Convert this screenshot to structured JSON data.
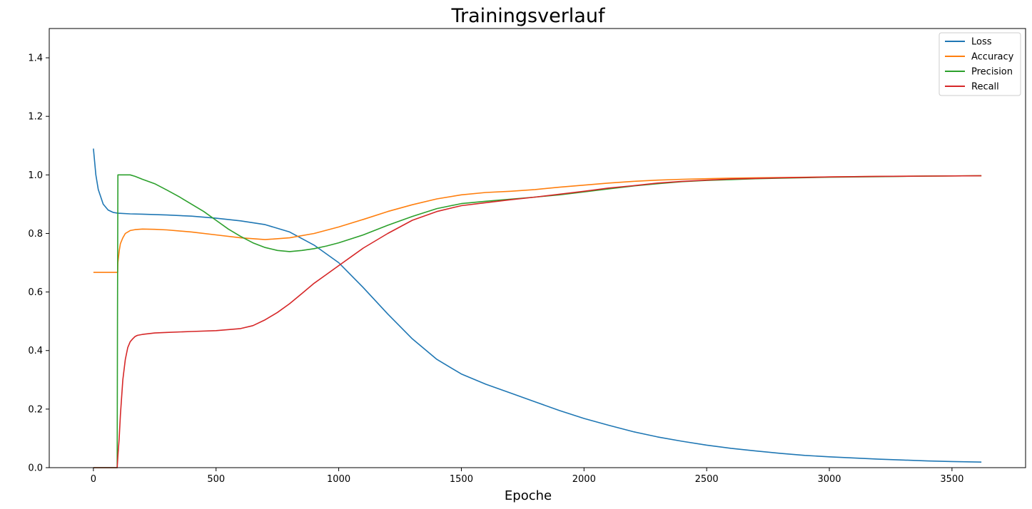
{
  "chart_data": {
    "type": "line",
    "title": "Trainingsverlauf",
    "xlabel": "Epoche",
    "ylabel": "",
    "xlim": [
      -180,
      3800
    ],
    "ylim": [
      0,
      1.5
    ],
    "xticks": [
      0,
      500,
      1000,
      1500,
      2000,
      2500,
      3000,
      3500
    ],
    "yticks": [
      0.0,
      0.2,
      0.4,
      0.6,
      0.8,
      1.0,
      1.2,
      1.4
    ],
    "grid": false,
    "legend": "top-right",
    "series": [
      {
        "name": "Loss",
        "color": "#1f77b4",
        "x": [
          0,
          10,
          20,
          40,
          60,
          80,
          100,
          150,
          200,
          300,
          400,
          500,
          600,
          700,
          800,
          900,
          1000,
          1100,
          1200,
          1300,
          1400,
          1500,
          1600,
          1700,
          1800,
          1900,
          2000,
          2100,
          2200,
          2300,
          2400,
          2500,
          2600,
          2700,
          2800,
          2900,
          3000,
          3100,
          3200,
          3300,
          3400,
          3500,
          3620
        ],
        "y": [
          1.09,
          1.0,
          0.95,
          0.9,
          0.88,
          0.872,
          0.869,
          0.867,
          0.866,
          0.863,
          0.859,
          0.852,
          0.843,
          0.83,
          0.805,
          0.76,
          0.7,
          0.615,
          0.525,
          0.44,
          0.37,
          0.32,
          0.285,
          0.255,
          0.225,
          0.195,
          0.168,
          0.145,
          0.123,
          0.105,
          0.09,
          0.077,
          0.066,
          0.057,
          0.049,
          0.042,
          0.037,
          0.033,
          0.029,
          0.026,
          0.023,
          0.021,
          0.019
        ]
      },
      {
        "name": "Accuracy",
        "color": "#ff7f0e",
        "x": [
          0,
          99,
          100,
          105,
          110,
          120,
          130,
          150,
          170,
          200,
          250,
          300,
          400,
          500,
          600,
          700,
          800,
          900,
          1000,
          1100,
          1200,
          1300,
          1400,
          1500,
          1600,
          1700,
          1800,
          1900,
          2000,
          2100,
          2200,
          2300,
          2400,
          2500,
          2600,
          2700,
          2800,
          3000,
          3200,
          3400,
          3620
        ],
        "y": [
          0.667,
          0.667,
          0.7,
          0.74,
          0.765,
          0.785,
          0.8,
          0.81,
          0.813,
          0.815,
          0.814,
          0.812,
          0.805,
          0.795,
          0.785,
          0.779,
          0.785,
          0.8,
          0.822,
          0.848,
          0.875,
          0.898,
          0.918,
          0.932,
          0.94,
          0.944,
          0.95,
          0.958,
          0.965,
          0.972,
          0.978,
          0.982,
          0.985,
          0.987,
          0.989,
          0.99,
          0.991,
          0.993,
          0.995,
          0.996,
          0.997
        ]
      },
      {
        "name": "Precision",
        "color": "#2ca02c",
        "x": [
          0,
          97,
          98,
          100,
          110,
          150,
          170,
          200,
          250,
          300,
          350,
          400,
          450,
          500,
          550,
          600,
          650,
          700,
          750,
          800,
          850,
          900,
          950,
          1000,
          1100,
          1200,
          1300,
          1400,
          1500,
          1600,
          1700,
          1800,
          1900,
          2000,
          2100,
          2200,
          2300,
          2400,
          2500,
          2600,
          2700,
          2800,
          3000,
          3200,
          3400,
          3620
        ],
        "y": [
          0.0,
          0.0,
          0.5,
          1.0,
          1.0,
          1.0,
          0.995,
          0.985,
          0.97,
          0.948,
          0.925,
          0.9,
          0.875,
          0.845,
          0.815,
          0.79,
          0.768,
          0.752,
          0.742,
          0.738,
          0.742,
          0.748,
          0.757,
          0.768,
          0.795,
          0.828,
          0.858,
          0.885,
          0.902,
          0.91,
          0.917,
          0.924,
          0.932,
          0.942,
          0.952,
          0.962,
          0.97,
          0.977,
          0.981,
          0.984,
          0.987,
          0.989,
          0.992,
          0.994,
          0.996,
          0.997
        ]
      },
      {
        "name": "Recall",
        "color": "#d62728",
        "x": [
          0,
          97,
          100,
          105,
          110,
          115,
          120,
          130,
          140,
          150,
          160,
          170,
          180,
          200,
          250,
          300,
          400,
          500,
          600,
          650,
          700,
          750,
          800,
          850,
          900,
          950,
          1000,
          1050,
          1100,
          1200,
          1300,
          1400,
          1500,
          1600,
          1700,
          1800,
          1900,
          2000,
          2100,
          2200,
          2300,
          2400,
          2500,
          2600,
          2700,
          2800,
          3000,
          3200,
          3400,
          3620
        ],
        "y": [
          0.0,
          0.0,
          0.04,
          0.1,
          0.18,
          0.24,
          0.3,
          0.37,
          0.41,
          0.43,
          0.44,
          0.448,
          0.452,
          0.455,
          0.46,
          0.462,
          0.465,
          0.468,
          0.475,
          0.485,
          0.505,
          0.53,
          0.56,
          0.595,
          0.63,
          0.66,
          0.69,
          0.72,
          0.75,
          0.8,
          0.845,
          0.875,
          0.895,
          0.905,
          0.915,
          0.924,
          0.934,
          0.944,
          0.955,
          0.963,
          0.972,
          0.978,
          0.982,
          0.986,
          0.988,
          0.99,
          0.993,
          0.995,
          0.996,
          0.997
        ]
      }
    ]
  }
}
